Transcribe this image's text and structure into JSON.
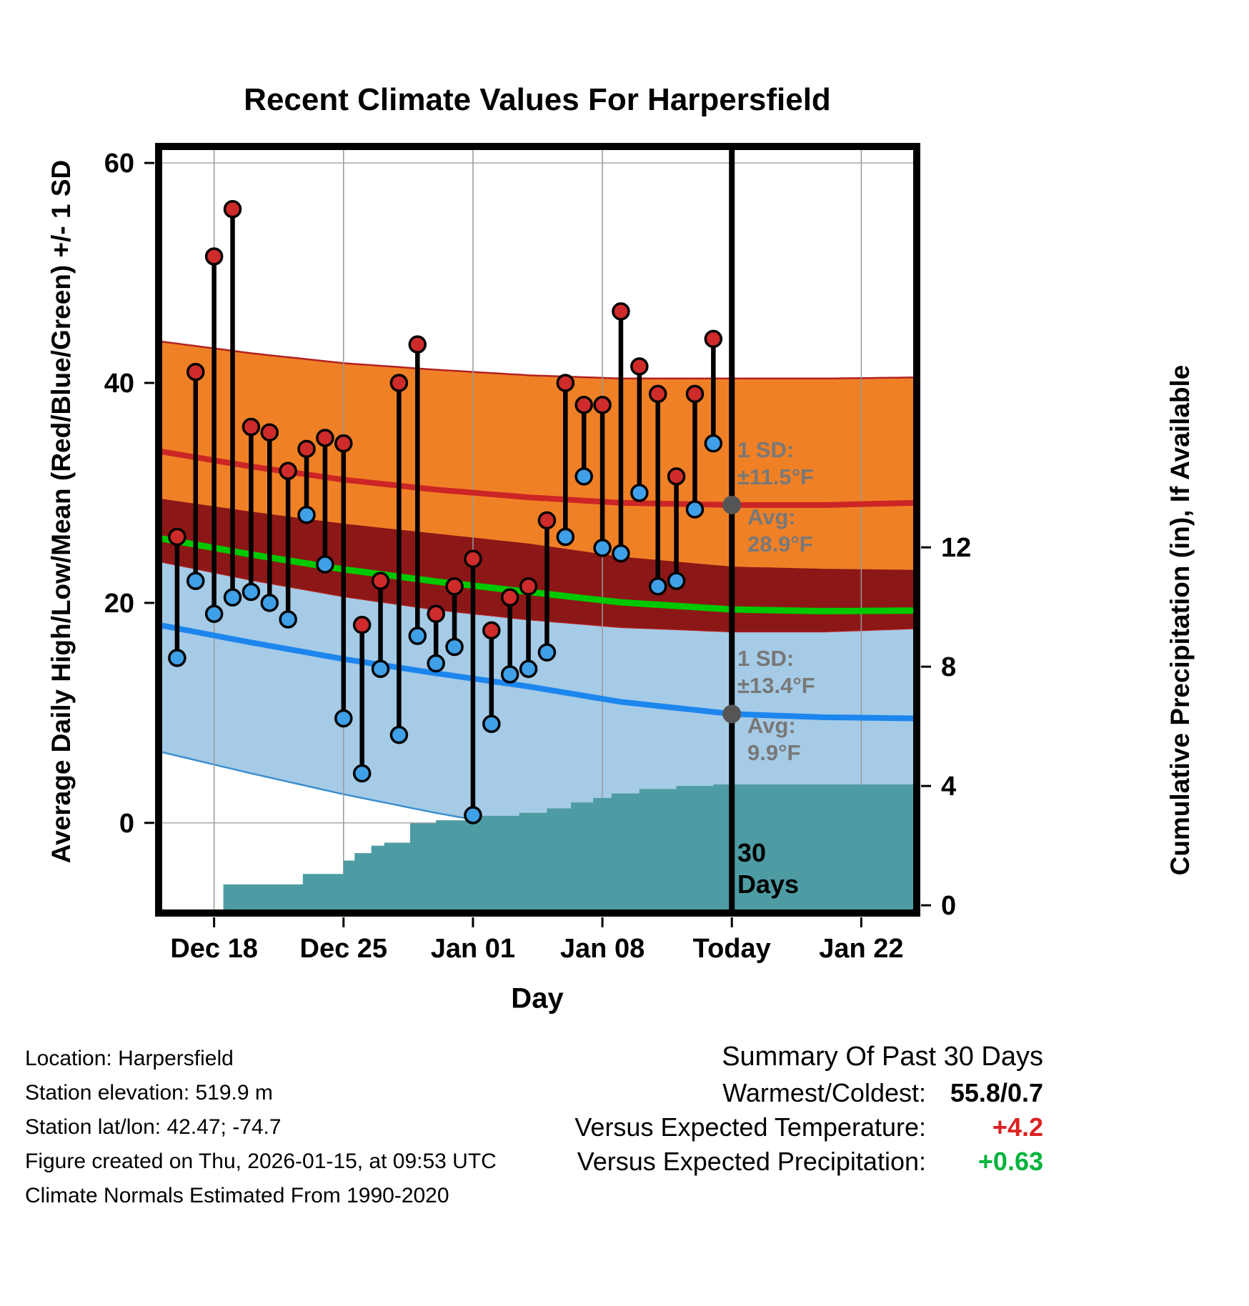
{
  "chart_data": {
    "type": "line",
    "title": "Recent Climate Values For Harpersfield",
    "xlabel": "Day",
    "ylabel_left": "Average Daily High/Low/Mean (Red/Blue/Green) +/- 1 SD",
    "ylabel_right": "Cumulative Precipitation (in), If Available",
    "x_axis": {
      "range_days": [
        0,
        41
      ],
      "today_day": 31,
      "ticks": [
        {
          "day": 3,
          "label": "Dec 18"
        },
        {
          "day": 10,
          "label": "Dec 25"
        },
        {
          "day": 17,
          "label": "Jan 01"
        },
        {
          "day": 24,
          "label": "Jan 08"
        },
        {
          "day": 31,
          "label": "Today"
        },
        {
          "day": 38,
          "label": "Jan 22"
        }
      ]
    },
    "temp_axis": {
      "min": -8.2,
      "max": 61.5,
      "ticks": [
        0,
        20,
        40,
        60
      ]
    },
    "precip_axis": {
      "min": -0.26,
      "max": 25.44,
      "ticks": [
        0,
        4,
        8,
        12
      ]
    },
    "normals": {
      "days": [
        0,
        5,
        10,
        15,
        20,
        25,
        31,
        36,
        41
      ],
      "high_avg": [
        33.8,
        32.4,
        31.2,
        30.3,
        29.6,
        29.1,
        28.9,
        28.9,
        29.1
      ],
      "low_avg": [
        18.0,
        16.4,
        14.9,
        13.6,
        12.4,
        11.0,
        9.9,
        9.6,
        9.5
      ],
      "high_sd": [
        10.0,
        10.3,
        10.6,
        10.9,
        11.1,
        11.3,
        11.5,
        11.5,
        11.4
      ],
      "low_sd": [
        11.5,
        11.9,
        12.3,
        12.7,
        13.0,
        13.2,
        13.4,
        13.5,
        13.5
      ]
    },
    "daily": [
      {
        "date": "Dec 16",
        "day": 1,
        "high": 26.0,
        "low": 15.0
      },
      {
        "date": "Dec 17",
        "day": 2,
        "high": 41.0,
        "low": 22.0
      },
      {
        "date": "Dec 18",
        "day": 3,
        "high": 51.5,
        "low": 19.0
      },
      {
        "date": "Dec 19",
        "day": 4,
        "high": 55.8,
        "low": 20.5
      },
      {
        "date": "Dec 20",
        "day": 5,
        "high": 36.0,
        "low": 21.0
      },
      {
        "date": "Dec 21",
        "day": 6,
        "high": 35.5,
        "low": 20.0
      },
      {
        "date": "Dec 22",
        "day": 7,
        "high": 32.0,
        "low": 18.5
      },
      {
        "date": "Dec 23",
        "day": 8,
        "high": 34.0,
        "low": 28.0
      },
      {
        "date": "Dec 24",
        "day": 9,
        "high": 35.0,
        "low": 23.5
      },
      {
        "date": "Dec 25",
        "day": 10,
        "high": 34.5,
        "low": 9.5
      },
      {
        "date": "Dec 26",
        "day": 11,
        "high": 18.0,
        "low": 4.5
      },
      {
        "date": "Dec 27",
        "day": 12,
        "high": 22.0,
        "low": 14.0
      },
      {
        "date": "Dec 28",
        "day": 13,
        "high": 40.0,
        "low": 8.0
      },
      {
        "date": "Dec 29",
        "day": 14,
        "high": 43.5,
        "low": 17.0
      },
      {
        "date": "Dec 30",
        "day": 15,
        "high": 19.0,
        "low": 14.5
      },
      {
        "date": "Dec 31",
        "day": 16,
        "high": 21.5,
        "low": 16.0
      },
      {
        "date": "Jan 01",
        "day": 17,
        "high": 24.0,
        "low": 0.7
      },
      {
        "date": "Jan 02",
        "day": 18,
        "high": 17.5,
        "low": 9.0
      },
      {
        "date": "Jan 03",
        "day": 19,
        "high": 20.5,
        "low": 13.5
      },
      {
        "date": "Jan 04",
        "day": 20,
        "high": 21.5,
        "low": 14.0
      },
      {
        "date": "Jan 05",
        "day": 21,
        "high": 27.5,
        "low": 15.5
      },
      {
        "date": "Jan 06",
        "day": 22,
        "high": 40.0,
        "low": 26.0
      },
      {
        "date": "Jan 07",
        "day": 23,
        "high": 38.0,
        "low": 31.5
      },
      {
        "date": "Jan 08",
        "day": 24,
        "high": 38.0,
        "low": 25.0
      },
      {
        "date": "Jan 09",
        "day": 25,
        "high": 46.5,
        "low": 24.5
      },
      {
        "date": "Jan 10",
        "day": 26,
        "high": 41.5,
        "low": 30.0
      },
      {
        "date": "Jan 11",
        "day": 27,
        "high": 39.0,
        "low": 21.5
      },
      {
        "date": "Jan 12",
        "day": 28,
        "high": 31.5,
        "low": 22.0
      },
      {
        "date": "Jan 13",
        "day": 29,
        "high": 39.0,
        "low": 28.5
      },
      {
        "date": "Jan 14",
        "day": 30,
        "high": 44.0,
        "low": 34.5
      }
    ],
    "precip_cumulative": [
      [
        3.5,
        0.7
      ],
      [
        7.8,
        1.05
      ],
      [
        10.0,
        1.5
      ],
      [
        10.6,
        1.75
      ],
      [
        11.5,
        2.0
      ],
      [
        12.2,
        2.1
      ],
      [
        13.6,
        2.75
      ],
      [
        15.0,
        2.85
      ],
      [
        17.0,
        3.0
      ],
      [
        19.5,
        3.1
      ],
      [
        21.0,
        3.25
      ],
      [
        22.3,
        3.45
      ],
      [
        23.5,
        3.6
      ],
      [
        24.5,
        3.75
      ],
      [
        26.0,
        3.9
      ],
      [
        28.0,
        4.0
      ],
      [
        30.0,
        4.05
      ],
      [
        41.0,
        4.05
      ]
    ],
    "annotations": {
      "high_sd_label": "1 SD:",
      "high_sd_value": "±11.5°F",
      "high_avg_label": "Avg:",
      "high_avg_value": "28.9°F",
      "low_sd_label": "1 SD:",
      "low_sd_value": "±13.4°F",
      "low_avg_label": "Avg:",
      "low_avg_value": "9.9°F",
      "today_span_line1": "30",
      "today_span_line2": "Days"
    },
    "colors": {
      "high_band": "#F08026",
      "high_band_edge": "#B22222",
      "low_band": "#A5CBE6",
      "low_band_edge": "#3C8FD0",
      "overlap_band": "#8C1717",
      "mean_line": "#00C800",
      "high_line": "#CC2525",
      "low_line": "#1C86EE",
      "high_dot": "#CF2B2B",
      "low_dot": "#3FA0E8",
      "precip_fill": "#4D9CA3",
      "today_marker": "#555555",
      "annotation_gray": "#787878"
    }
  },
  "footer": {
    "lines": [
      "Location: Harpersfield",
      "Station elevation: 519.9 m",
      "Station lat/lon: 42.47; -74.7",
      "Figure created on Thu, 2026-01-15, at 09:53 UTC",
      "Climate Normals Estimated From 1990-2020"
    ]
  },
  "summary": {
    "title": "Summary Of Past 30 Days",
    "rows": [
      {
        "label": "Warmest/Coldest:",
        "value": "55.8/0.7",
        "value_color": "#000000"
      },
      {
        "label": "Versus Expected Temperature:",
        "value": "+4.2",
        "value_color": "#DD2222"
      },
      {
        "label": "Versus Expected Precipitation:",
        "value": "+0.63",
        "value_color": "#00B33C"
      }
    ]
  }
}
